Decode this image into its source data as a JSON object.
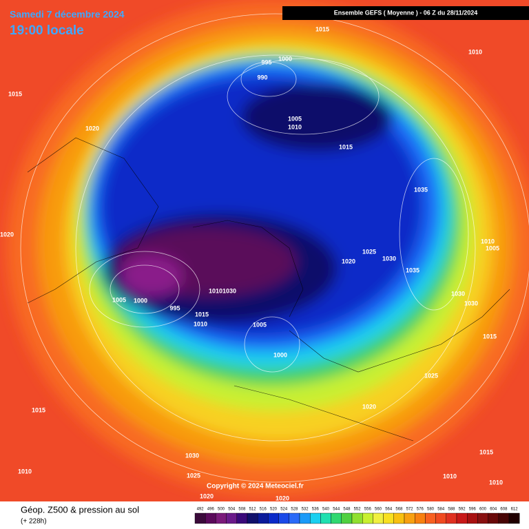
{
  "header": {
    "date": "Samedi 7 décembre 2024",
    "time": "19:00 locale",
    "model": "Ensemble GEFS  ( Moyenne )  -  06 Z du 28/11/2024"
  },
  "isobar_labels": [
    "1015",
    "1010",
    "995",
    "1000",
    "990",
    "1015",
    "1005",
    "1010",
    "1020",
    "1015",
    "1035",
    "1020",
    "1010",
    "1005",
    "1025",
    "1030",
    "1020",
    "1035",
    "1005",
    "1000",
    "1010",
    "1030",
    "995",
    "1015",
    "1010",
    "1005",
    "1030",
    "1030",
    "1015",
    "1000",
    "1025",
    "1020",
    "1015",
    "1030",
    "1015",
    "1010",
    "1025",
    "1010",
    "1010",
    "1020",
    "1020"
  ],
  "footer": {
    "title": "Géop. Z500 & pression au sol",
    "subtitle": "(+ 228h)",
    "copyright": "Copyright © 2024 Meteociel.fr"
  },
  "legend": {
    "values": [
      492,
      496,
      500,
      504,
      508,
      512,
      516,
      520,
      524,
      528,
      532,
      536,
      540,
      544,
      548,
      552,
      556,
      560,
      564,
      568,
      572,
      576,
      580,
      584,
      588,
      592,
      596,
      600,
      604,
      608,
      612
    ],
    "colors": [
      "#3a0a3a",
      "#5a0a5a",
      "#7a1a7a",
      "#6a1a8a",
      "#3a0a7a",
      "#10106a",
      "#0a1a9a",
      "#0a2ac8",
      "#1a4ae8",
      "#2a6af8",
      "#1a9af8",
      "#1ad0f0",
      "#20e0b0",
      "#30d870",
      "#50d040",
      "#90e030",
      "#c8f030",
      "#f0f040",
      "#f8e020",
      "#f8c010",
      "#f8a010",
      "#f88010",
      "#f86020",
      "#f04a20",
      "#e03020",
      "#c81818",
      "#a81010",
      "#881010",
      "#680808",
      "#480404",
      "#200000"
    ]
  }
}
